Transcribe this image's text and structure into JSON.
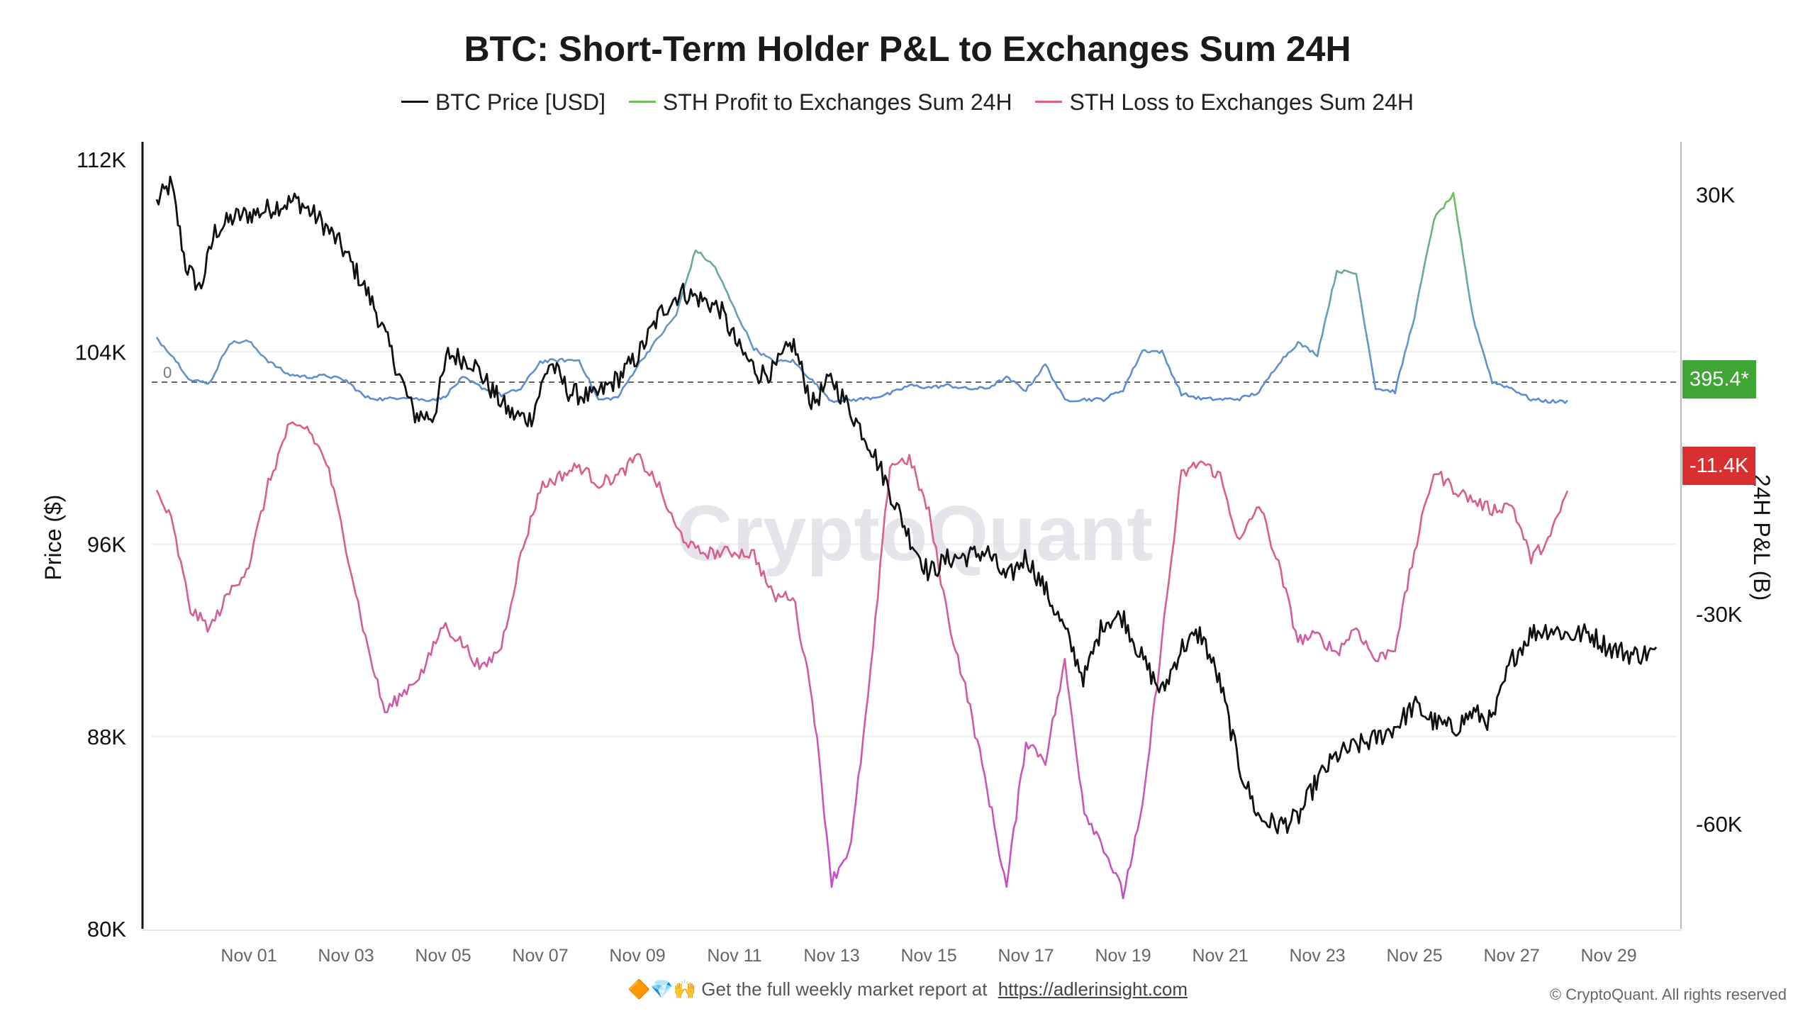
{
  "chart_data": {
    "type": "line",
    "title": "BTC: Short-Term Holder P&L to Exchanges Sum 24H",
    "ylabel_left": "Price ($)",
    "ylabel_right": "24H P&L (B)",
    "ylim_left": [
      80000,
      112000
    ],
    "ylim_right": [
      -75000,
      35000
    ],
    "left_ticks": [
      "112K",
      "104K",
      "96K",
      "88K",
      "80K"
    ],
    "left_tick_values": [
      112000,
      104000,
      96000,
      88000,
      80000
    ],
    "right_ticks": [
      "30K",
      "-30K",
      "-60K"
    ],
    "right_tick_values": [
      30000,
      -30000,
      -60000
    ],
    "zero_label": "0",
    "x_ticks": [
      "Nov 01",
      "Nov 03",
      "Nov 05",
      "Nov 07",
      "Nov 09",
      "Nov 11",
      "Nov 13",
      "Nov 15",
      "Nov 17",
      "Nov 19",
      "Nov 21",
      "Nov 23",
      "Nov 25",
      "Nov 27",
      "Nov 29"
    ],
    "x_tick_days": [
      1,
      3,
      5,
      7,
      9,
      11,
      13,
      15,
      17,
      19,
      21,
      23,
      25,
      27,
      29
    ],
    "x_range_days": [
      -1,
      30.4
    ],
    "legend": [
      {
        "name": "BTC Price [USD]",
        "color": "#111111"
      },
      {
        "name": "STH Profit to Exchanges Sum 24H",
        "color": "#6cbf5a"
      },
      {
        "name": "STH Loss to Exchanges Sum 24H",
        "color": "#e0607a"
      }
    ],
    "price_series": {
      "days": [
        -0.9,
        -0.6,
        -0.3,
        0.0,
        0.3,
        0.7,
        1.2,
        1.6,
        2.0,
        2.5,
        2.9,
        3.3,
        3.6,
        4.0,
        4.4,
        4.8,
        5.1,
        5.6,
        6.0,
        6.4,
        6.8,
        7.2,
        7.6,
        8.1,
        8.6,
        9.0,
        9.5,
        9.9,
        10.3,
        10.7,
        11.1,
        11.5,
        11.8,
        12.2,
        12.6,
        13.0,
        13.4,
        13.8,
        14.2,
        14.6,
        15.0,
        15.4,
        15.8,
        16.2,
        16.6,
        17.0,
        17.4,
        17.8,
        18.2,
        18.6,
        19.0,
        19.4,
        19.8,
        20.2,
        20.6,
        21.0,
        21.4,
        21.8,
        22.2,
        22.6,
        23.0,
        23.4,
        23.8,
        24.2,
        24.6,
        25.0,
        25.4,
        25.8,
        26.2,
        26.6,
        27.0,
        27.4,
        27.8,
        28.2,
        28.6,
        29.0,
        29.5,
        30.0
      ],
      "values": [
        110200,
        111000,
        107600,
        106600,
        109000,
        109600,
        109800,
        110100,
        110300,
        109400,
        108400,
        107000,
        105800,
        103600,
        101400,
        101300,
        103900,
        103600,
        102400,
        101400,
        101200,
        103600,
        102300,
        102100,
        102900,
        103800,
        105700,
        106500,
        106200,
        105800,
        104100,
        103100,
        103200,
        104400,
        101800,
        102900,
        101500,
        100100,
        98200,
        96300,
        94800,
        95400,
        95500,
        95700,
        94500,
        95500,
        94100,
        92400,
        90400,
        92800,
        93000,
        91200,
        89800,
        91700,
        92300,
        90200,
        86700,
        84600,
        84300,
        84600,
        86200,
        87200,
        87600,
        87900,
        88400,
        89300,
        88600,
        88300,
        89000,
        88600,
        91200,
        92300,
        92500,
        92200,
        92300,
        91700,
        91400,
        91500
      ]
    },
    "pnl_series": {
      "days": [
        -0.9,
        -0.6,
        -0.2,
        0.2,
        0.6,
        1.0,
        1.4,
        1.8,
        2.2,
        2.6,
        3.0,
        3.4,
        3.8,
        4.2,
        4.6,
        5.0,
        5.4,
        5.8,
        6.2,
        6.6,
        7.0,
        7.4,
        7.8,
        8.2,
        8.6,
        9.0,
        9.4,
        9.8,
        10.2,
        10.6,
        11.0,
        11.4,
        11.8,
        12.2,
        12.6,
        13.0,
        13.4,
        13.8,
        14.2,
        14.6,
        15.0,
        15.4,
        15.8,
        16.2,
        16.6,
        17.0,
        17.4,
        17.8,
        18.2,
        18.6,
        19.0,
        19.4,
        19.8,
        20.2,
        20.6,
        21.0,
        21.4,
        21.8,
        22.2,
        22.6,
        23.0,
        23.4,
        23.8,
        24.2,
        24.6,
        25.0,
        25.4,
        25.8,
        26.2,
        26.6,
        27.0,
        27.4,
        27.8,
        28.2,
        28.6,
        29.0,
        29.5,
        30.0
      ],
      "profit": [
        9400,
        7200,
        3400,
        3100,
        8800,
        9000,
        6200,
        4300,
        3900,
        4100,
        3400,
        1000,
        700,
        1100,
        600,
        900,
        3800,
        2400,
        1300,
        2200,
        6100,
        6300,
        6300,
        600,
        1000,
        5500,
        9200,
        12800,
        22100,
        19600,
        13600,
        8000,
        6100,
        6200,
        3400,
        500,
        600,
        900,
        1500,
        2700,
        2400,
        2700,
        2200,
        2300,
        3800,
        2000,
        5700,
        600,
        700,
        700,
        2100,
        7700,
        7500,
        1500,
        800,
        700,
        800,
        1700,
        5900,
        8800,
        7100,
        19100,
        18700,
        2300,
        1800,
        12600,
        26500,
        30000,
        12500,
        3200,
        2300,
        700,
        400,
        395
      ],
      "loss": [
        -12600,
        -16500,
        -29400,
        -32000,
        -26900,
        -23000,
        -11500,
        -3500,
        -3300,
        -8300,
        -20200,
        -33400,
        -44100,
        -41100,
        -38000,
        -31500,
        -34200,
        -38000,
        -34600,
        -21600,
        -11900,
        -10300,
        -8800,
        -11300,
        -10300,
        -7500,
        -11200,
        -17800,
        -21000,
        -21300,
        -21100,
        -21400,
        -27600,
        -27300,
        -41700,
        -68200,
        -63000,
        -38700,
        -8600,
        -7800,
        -15500,
        -30700,
        -41900,
        -54900,
        -69100,
        -48100,
        -50800,
        -37000,
        -58000,
        -63200,
        -70100,
        -58000,
        -33600,
        -10200,
        -8200,
        -10300,
        -19900,
        -14200,
        -23000,
        -33700,
        -33100,
        -35500,
        -31800,
        -36700,
        -34600,
        -21100,
        -9500,
        -12000,
        -13700,
        -15100,
        -14200,
        -22100,
        -19000,
        -11400
      ]
    },
    "profit_value_flag": "395.4*",
    "loss_value_flag": "-11.4K",
    "flag_colors": {
      "profit": "#3fa535",
      "loss": "#d83030"
    },
    "series_colors": {
      "price": "#111111",
      "profit_blue": "#5b8ad8",
      "profit_green": "#6cbf5a",
      "loss_red": "#e0607a",
      "loss_magenta": "#c44fcc"
    },
    "watermark": "CryptoQuant"
  },
  "footer": {
    "emojis": "🔶💎🙌",
    "text": "Get the full weekly market report at",
    "link": "https://adlerinsight.com",
    "copyright": "© CryptoQuant. All rights reserved"
  }
}
